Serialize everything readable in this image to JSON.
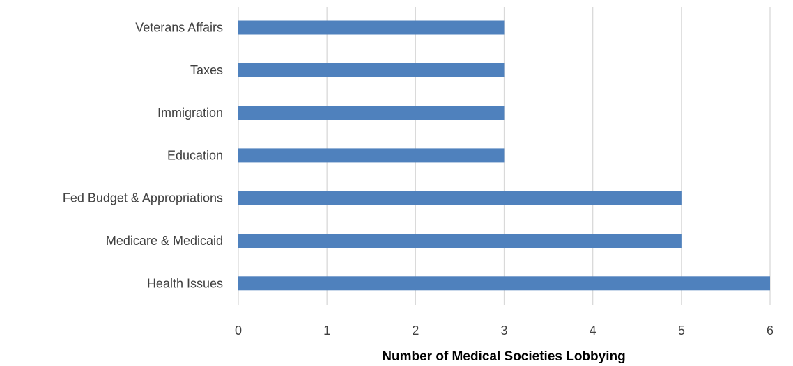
{
  "chart_data": {
    "type": "bar",
    "orientation": "horizontal",
    "categories": [
      "Veterans Affairs",
      "Taxes",
      "Immigration",
      "Education",
      "Fed Budget & Appropriations",
      "Medicare & Medicaid",
      "Health Issues"
    ],
    "values": [
      3,
      3,
      3,
      3,
      5,
      5,
      6
    ],
    "title": "",
    "xlabel": "Number of Medical Societies Lobbying",
    "ylabel": "",
    "xlim": [
      0,
      6
    ],
    "xticks": [
      "0",
      "1",
      "2",
      "3",
      "4",
      "5",
      "6"
    ],
    "grid": "vertical",
    "legend": "none",
    "bar_color": "#4f81bd",
    "grid_color": "#d9d9d9"
  }
}
